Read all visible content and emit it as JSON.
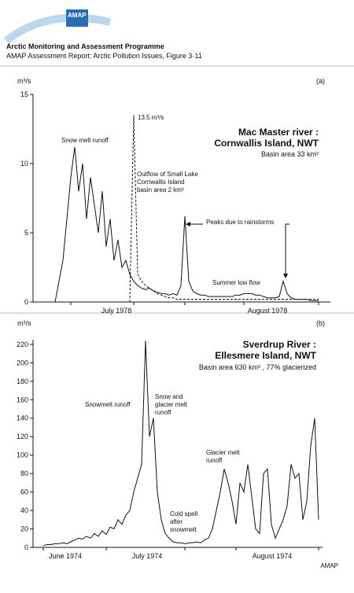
{
  "header": {
    "logo": "AMAP",
    "title": "Arctic Monitoring and Assessment Programme",
    "subtitle": "AMAP Assessment Report: Arctic Pollution Issues, Figure 3·11"
  },
  "footer": "AMAP",
  "chart_data": [
    {
      "type": "line",
      "panel": "(a)",
      "ylabel": "m³/s",
      "title": [
        "Mac Master river :",
        "Cornwallis Island, NWT"
      ],
      "subtitle": "Basin area 33 km²",
      "xlabels": [
        "July 1978",
        "August 1978"
      ],
      "annotations": [
        "Snow melt runoff",
        "13.5 m³/s",
        "Outflow of Small Lake",
        "Cornwallis Island",
        "basin area 2 km²",
        "Peaks due to rainstorms",
        "Summer low flow"
      ],
      "ylim": [
        0,
        15
      ],
      "yticks": [
        0,
        5,
        10,
        15
      ],
      "series": [
        {
          "color": "#111111",
          "dash": false,
          "values": [
            0,
            1.5,
            3,
            6,
            9,
            11.2,
            8,
            10,
            6,
            9,
            7,
            5,
            8,
            4,
            6,
            3,
            4.5,
            2.5,
            3,
            2,
            1.5,
            1.2,
            1.0,
            0.9,
            1,
            0.8,
            0.7,
            0.6,
            0.6,
            0.5,
            0.6,
            0.5,
            1.2,
            6.2,
            1.5,
            0.8,
            0.6,
            0.5,
            0.5,
            0.4,
            0.4,
            0.4,
            0.4,
            0.4,
            0.4,
            0.4,
            0.5,
            0.5,
            0.6,
            0.6,
            0.6,
            0.5,
            0.5,
            0.4,
            0.3,
            0.3,
            0.3,
            0.4,
            1.5,
            0.6,
            0.3,
            0.2,
            0.2,
            0.2,
            0.2,
            0.1,
            0.1,
            0.1
          ]
        },
        {
          "color": "#111111",
          "dash": true,
          "values": [
            null,
            null,
            null,
            null,
            null,
            null,
            null,
            null,
            null,
            null,
            null,
            null,
            null,
            null,
            null,
            null,
            null,
            null,
            null,
            0,
            13.5,
            2,
            1.5,
            1.2,
            1,
            0.8,
            0.6,
            0.5,
            0.4,
            0.3,
            0.3,
            0.2,
            0.2,
            0.2,
            0.2,
            0.2,
            0.2,
            0.2,
            0.2,
            0.2,
            0.2,
            0.2,
            0.2,
            0.2,
            0.2,
            0.2,
            0.2,
            0.2,
            0.2,
            0.2,
            0.2,
            0.2,
            0.2,
            0.2,
            0.2,
            0.2,
            0.2,
            0.2,
            0.2,
            0.2,
            0.2,
            0.2,
            0.2,
            0.2,
            0.2,
            0.2,
            0.2,
            0.2
          ]
        }
      ]
    },
    {
      "type": "line",
      "panel": "(b)",
      "ylabel": "m³/s",
      "title": [
        "Sverdrup River :",
        "Ellesmere Island, NWT"
      ],
      "subtitle": "Basin area 630 km² , 77% glacierized",
      "xlabels": [
        "June 1974",
        "July 1974",
        "August 1974"
      ],
      "annotations": [
        "Snowmelt runoff",
        "Snow and",
        "glacier melt",
        "runoff",
        "Cold spell",
        "after",
        "snowmelt",
        "Glacier melt",
        "runoff"
      ],
      "ylim": [
        0,
        225
      ],
      "yticks": [
        0,
        20,
        40,
        60,
        80,
        100,
        120,
        140,
        160,
        180,
        200,
        220
      ],
      "series": [
        {
          "color": "#111111",
          "dash": false,
          "values": [
            2,
            3,
            3,
            4,
            4,
            5,
            4,
            6,
            8,
            10,
            9,
            12,
            10,
            15,
            12,
            18,
            14,
            22,
            20,
            30,
            25,
            35,
            40,
            60,
            75,
            90,
            224,
            120,
            140,
            60,
            30,
            15,
            10,
            6,
            5,
            5,
            4,
            5,
            5,
            6,
            5,
            8,
            10,
            20,
            40,
            60,
            85,
            70,
            50,
            25,
            70,
            60,
            90,
            55,
            20,
            15,
            80,
            85,
            25,
            10,
            20,
            30,
            45,
            90,
            75,
            80,
            30,
            50,
            110,
            140,
            30
          ]
        }
      ]
    }
  ]
}
